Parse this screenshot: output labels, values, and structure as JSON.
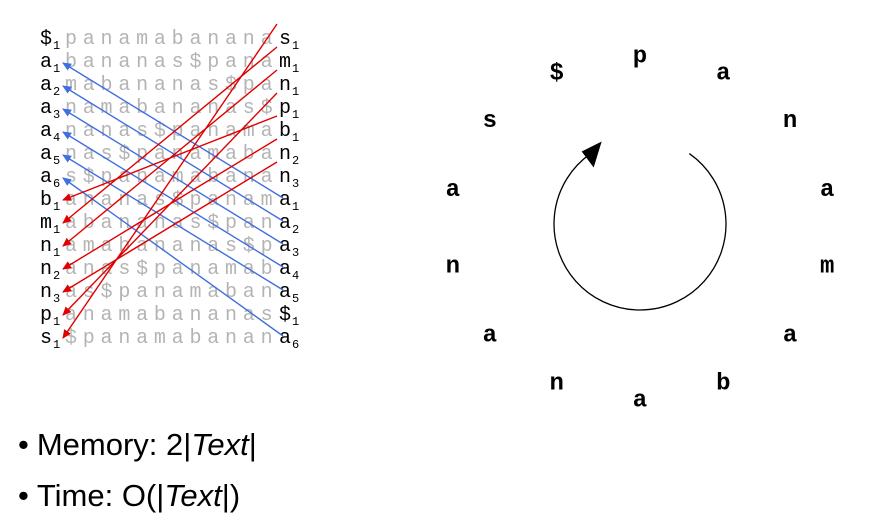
{
  "bwt_matrix": {
    "first_column": [
      {
        "char": "$",
        "rank": "1"
      },
      {
        "char": "a",
        "rank": "1"
      },
      {
        "char": "a",
        "rank": "2"
      },
      {
        "char": "a",
        "rank": "3"
      },
      {
        "char": "a",
        "rank": "4"
      },
      {
        "char": "a",
        "rank": "5"
      },
      {
        "char": "a",
        "rank": "6"
      },
      {
        "char": "b",
        "rank": "1"
      },
      {
        "char": "m",
        "rank": "1"
      },
      {
        "char": "n",
        "rank": "1"
      },
      {
        "char": "n",
        "rank": "2"
      },
      {
        "char": "n",
        "rank": "3"
      },
      {
        "char": "p",
        "rank": "1"
      },
      {
        "char": "s",
        "rank": "1"
      }
    ],
    "middle": [
      "panamabanana",
      "bananas$pana",
      "mabananas$pa",
      "namabananas$",
      "nanas$panama",
      "nas$panamaba",
      "s$panamabana",
      "ananas$panam",
      "abananas$pan",
      "amabananas$p",
      "anas$panamab",
      "as$panamaban",
      "anamabananas",
      "$panamabanan"
    ],
    "last_column": [
      {
        "char": "s",
        "rank": "1"
      },
      {
        "char": "m",
        "rank": "1"
      },
      {
        "char": "n",
        "rank": "1"
      },
      {
        "char": "p",
        "rank": "1"
      },
      {
        "char": "b",
        "rank": "1"
      },
      {
        "char": "n",
        "rank": "2"
      },
      {
        "char": "n",
        "rank": "3"
      },
      {
        "char": "a",
        "rank": "1"
      },
      {
        "char": "a",
        "rank": "2"
      },
      {
        "char": "a",
        "rank": "3"
      },
      {
        "char": "a",
        "rank": "4"
      },
      {
        "char": "a",
        "rank": "5"
      },
      {
        "char": "$",
        "rank": "1"
      },
      {
        "char": "a",
        "rank": "6"
      }
    ],
    "blue_links": [
      [
        1,
        7
      ],
      [
        2,
        8
      ],
      [
        3,
        9
      ],
      [
        4,
        10
      ],
      [
        5,
        11
      ],
      [
        6,
        13
      ]
    ],
    "red_links": [
      [
        0,
        13
      ],
      [
        1,
        8
      ],
      [
        2,
        9
      ],
      [
        3,
        12
      ],
      [
        4,
        7
      ],
      [
        5,
        10
      ],
      [
        6,
        11
      ]
    ],
    "colors": {
      "text": "#000000",
      "faded": "#b4b4b4",
      "blue": "#3f6fe0",
      "red": "#e00000"
    }
  },
  "cycle": {
    "letters": [
      "p",
      "a",
      "n",
      "a",
      "m",
      "a",
      "b",
      "a",
      "n",
      "a",
      "n",
      "a",
      "s",
      "$"
    ],
    "arrow_direction": "clockwise",
    "color": "#000000"
  },
  "bullets": [
    {
      "prefix": "Memory: 2|",
      "italic": "Text",
      "suffix": "|"
    },
    {
      "prefix": "Time: O(|",
      "italic": "Text",
      "suffix": "|)"
    }
  ]
}
